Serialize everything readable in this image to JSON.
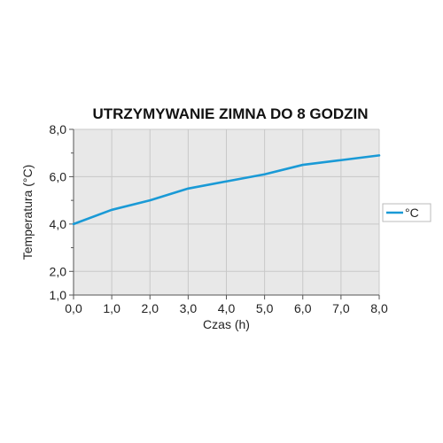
{
  "chart_data": {
    "type": "line",
    "title": "UTRZYMYWANIE ZIMNA DO 8 GODZIN",
    "xlabel": "Czas (h)",
    "ylabel": "Temperatura (°C)",
    "xlim": [
      0,
      8
    ],
    "ylim": [
      1,
      8
    ],
    "x_ticks": [
      0,
      1,
      2,
      3,
      4,
      5,
      6,
      7,
      8
    ],
    "x_tick_labels": [
      "0,0",
      "1,0",
      "2,0",
      "3,0",
      "4,0",
      "5,0",
      "6,0",
      "7,0",
      "8,0"
    ],
    "y_ticks": [
      1,
      2,
      4,
      6,
      8
    ],
    "y_tick_labels": [
      "1,0",
      "2,0",
      "4,0",
      "6,0",
      "8,0"
    ],
    "grid": true,
    "legend_position": "right",
    "series": [
      {
        "name": "°C",
        "color": "#1a9ad6",
        "x": [
          0,
          1,
          2,
          3,
          4,
          5,
          6,
          7,
          8
        ],
        "y": [
          4.0,
          4.6,
          5.0,
          5.5,
          5.8,
          6.1,
          6.5,
          6.7,
          6.9
        ]
      }
    ],
    "plot_background": "#e8e8e8",
    "grid_color": "#c8c8c8"
  }
}
